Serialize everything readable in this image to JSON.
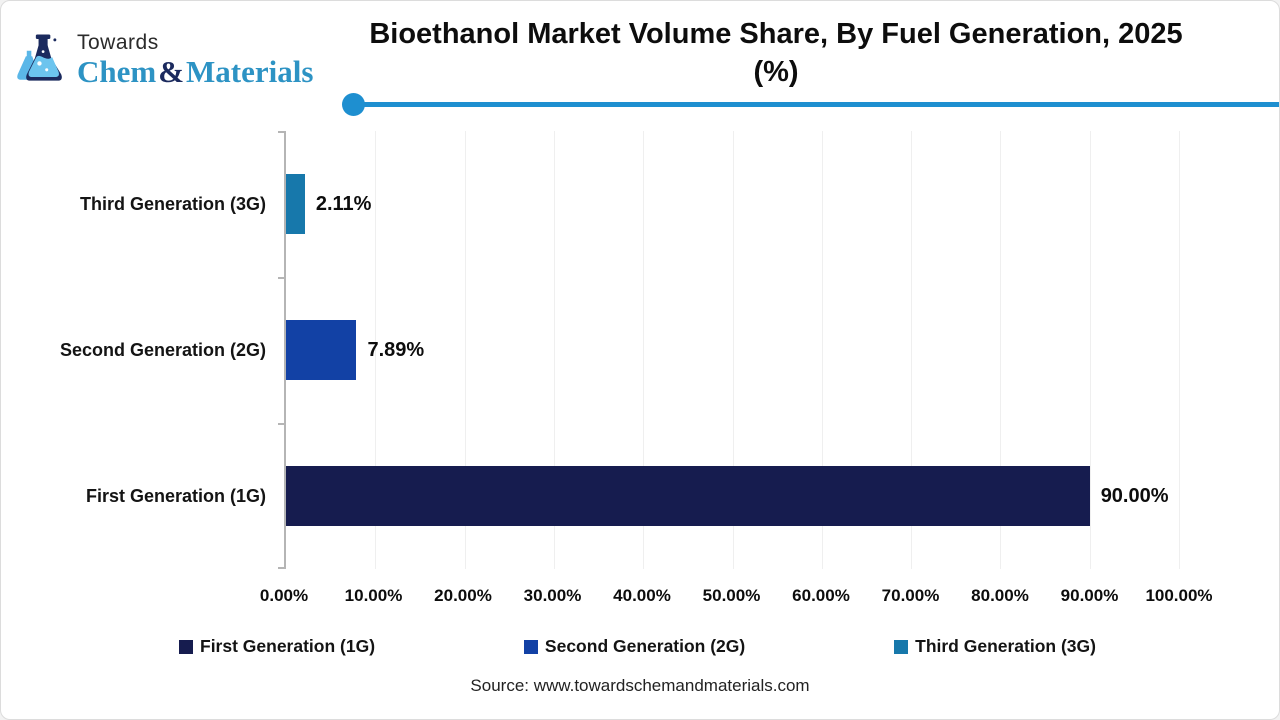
{
  "logo": {
    "towards": "Towards",
    "chem": "Chem",
    "amp": "&",
    "materials": "Materials",
    "icon": "flask-icon",
    "colors": {
      "brand_teal": "#2d93c4",
      "brand_navy": "#1b2a5e",
      "flask_light": "#5bb7e8"
    }
  },
  "title": "Bioethanol Market Volume Share, By Fuel Generation, 2025 (%)",
  "accent": {
    "title_underline": "#1e8fd0",
    "axis_line": "#b5b5b5",
    "gridline": "#efefef"
  },
  "chart_data": {
    "type": "bar",
    "orientation": "horizontal",
    "title": "Bioethanol Market Volume Share, By Fuel Generation, 2025 (%)",
    "categories": [
      "Third Generation (3G)",
      "Second Generation (2G)",
      "First Generation (1G)"
    ],
    "values": [
      2.11,
      7.89,
      90.0
    ],
    "rows": [
      {
        "label": "Third Generation (3G)",
        "value": 2.11,
        "value_label": "2.11%",
        "color": "#1778ab"
      },
      {
        "label": "Second Generation (2G)",
        "value": 7.89,
        "value_label": "7.89%",
        "color": "#1241a5"
      },
      {
        "label": "First Generation (1G)",
        "value": 90.0,
        "value_label": "90.00%",
        "color": "#161c4f"
      }
    ],
    "xlim": [
      0,
      100
    ],
    "x_ticks": [
      "0.00%",
      "10.00%",
      "20.00%",
      "30.00%",
      "40.00%",
      "50.00%",
      "60.00%",
      "70.00%",
      "80.00%",
      "90.00%",
      "100.00%"
    ],
    "grid": "vertical-faint",
    "legend_position": "bottom",
    "legend": [
      {
        "label": "First Generation (1G)",
        "color": "#161c4f"
      },
      {
        "label": "Second Generation (2G)",
        "color": "#1241a5"
      },
      {
        "label": "Third Generation (3G)",
        "color": "#1778ab"
      }
    ]
  },
  "source": "Source: www.towardschemandmaterials.com"
}
